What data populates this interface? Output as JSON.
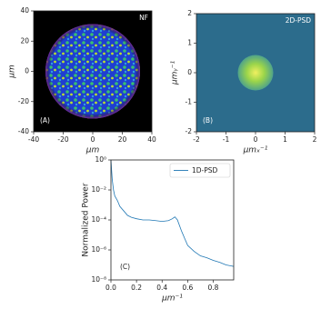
{
  "chart_data": [
    {
      "type": "image",
      "title": "NF",
      "annotation": "(A)",
      "xlabel": "μm",
      "ylabel": "μm",
      "xlim": [
        -40,
        40
      ],
      "ylim": [
        -40,
        40
      ],
      "xticks": [
        -40,
        -20,
        0,
        20,
        40
      ],
      "yticks": [
        -40,
        -20,
        0,
        20,
        40
      ]
    },
    {
      "type": "image",
      "title": "2D-PSD",
      "annotation": "(B)",
      "xlabel": "μmₓ⁻¹",
      "ylabel": "μmᵧ⁻¹",
      "xlim": [
        -2,
        2
      ],
      "ylim": [
        -2,
        2
      ],
      "xticks": [
        -2,
        -1,
        0,
        1,
        2
      ],
      "yticks": [
        -2,
        -1,
        0,
        1,
        2
      ]
    },
    {
      "type": "line",
      "annotation": "(C)",
      "xlabel": "μm⁻¹",
      "ylabel": "Normalized Power",
      "log_y": true,
      "xlim": [
        0,
        0.96
      ],
      "ylim": [
        1e-08,
        1
      ],
      "xticks": [
        {
          "value": 0,
          "label": "0.0"
        },
        {
          "value": 0.2,
          "label": "0.2"
        },
        {
          "value": 0.4,
          "label": "0.4"
        },
        {
          "value": 0.6,
          "label": "0.6"
        },
        {
          "value": 0.8,
          "label": "0.8"
        }
      ],
      "yticks": [
        {
          "value": 1,
          "label": "10⁰"
        },
        {
          "value": 0.01,
          "label": "10⁻²"
        },
        {
          "value": 0.0001,
          "label": "10⁻⁴"
        },
        {
          "value": 1e-06,
          "label": "10⁻⁶"
        },
        {
          "value": 1e-08,
          "label": "10⁻⁸"
        }
      ],
      "legend": "upper right",
      "x": [
        0,
        0.01,
        0.02,
        0.03,
        0.05,
        0.07,
        0.1,
        0.13,
        0.16,
        0.2,
        0.25,
        0.3,
        0.35,
        0.4,
        0.45,
        0.48,
        0.5,
        0.52,
        0.55,
        0.58,
        0.6,
        0.65,
        0.7,
        0.75,
        0.8,
        0.85,
        0.9,
        0.96
      ],
      "series": [
        {
          "name": "1D-PSD",
          "color": "#1f77b4",
          "values": [
            1,
            0.05,
            0.01,
            0.004,
            0.002,
            0.0008,
            0.0004,
            0.0002,
            0.00015,
            0.00012,
            0.0001,
            0.0001,
            9e-05,
            8e-05,
            9e-05,
            0.00012,
            0.00016,
            0.0001,
            2e-05,
            5e-06,
            2e-06,
            8e-07,
            4e-07,
            3e-07,
            2e-07,
            1.5e-07,
            1e-07,
            8e-08
          ]
        }
      ]
    }
  ]
}
